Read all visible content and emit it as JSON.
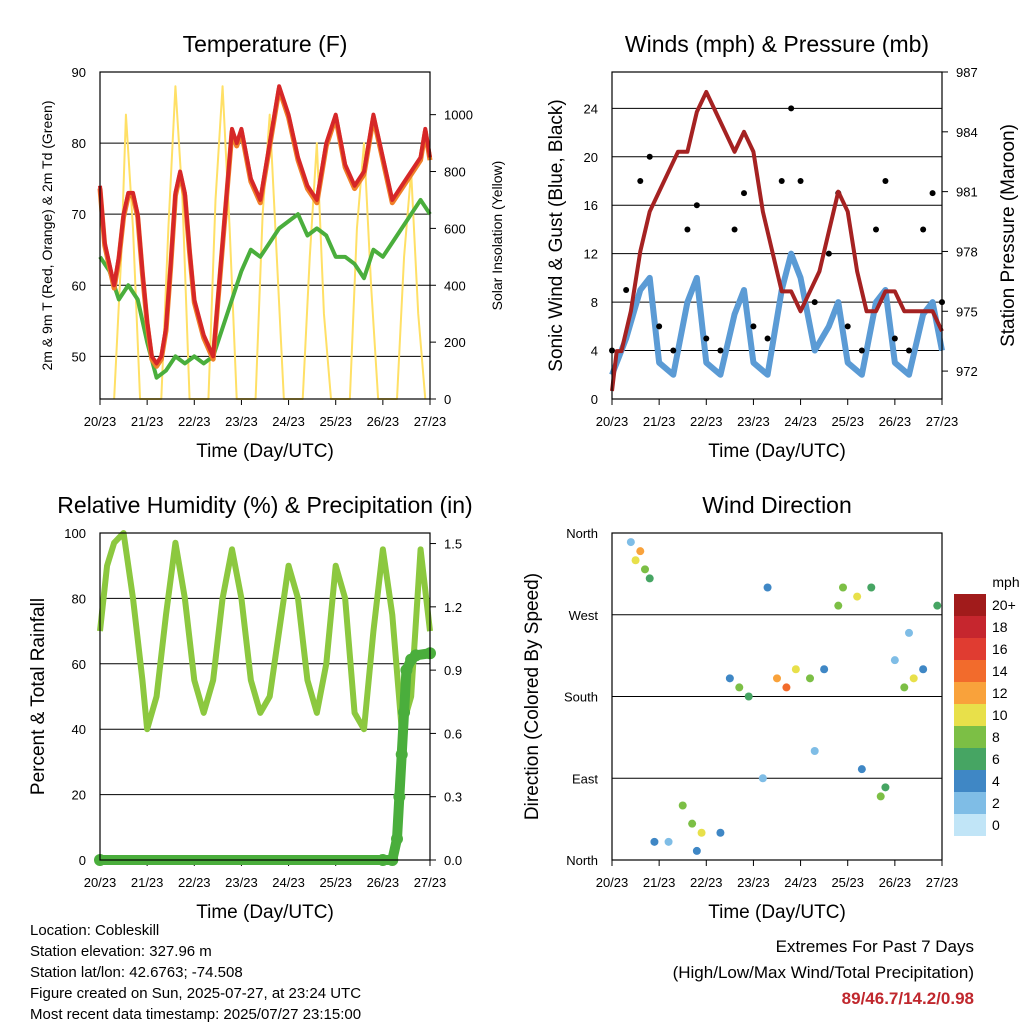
{
  "info": {
    "location": "Location: Cobleskill",
    "elevation": "Station elevation: 327.96 m",
    "latlon": "Station lat/lon: 42.6763; -74.508",
    "created": "Figure created on Sun, 2025-07-27, at 23:24 UTC",
    "recent": "Most recent data timestamp: 2025/07/27 23:15:00"
  },
  "extremes": {
    "title": "Extremes For Past 7 Days",
    "subtitle": "(High/Low/Max Wind/Total Precipitation)",
    "values": "89/46.7/14.2/0.98"
  },
  "colors": {
    "temp2m": "#d62728",
    "temp9m": "#f07f28",
    "dew": "#4aae3c",
    "solar": "#ffe066",
    "wind": "#5b9bd5",
    "gust": "#000000",
    "pressure": "#a52222",
    "rh": "#8cc83f",
    "precip": "#4aae3c"
  },
  "speed_legend": {
    "unit": "mph",
    "labels": [
      "20+",
      "18",
      "16",
      "14",
      "12",
      "10",
      "8",
      "6",
      "4",
      "2",
      "0"
    ],
    "colors": [
      "#a11b1b",
      "#c6262e",
      "#e03c31",
      "#f26b2c",
      "#f9a23b",
      "#e8e04a",
      "#7cbf45",
      "#46a563",
      "#3f87c5",
      "#7fbde6",
      "#c1e5f7"
    ]
  },
  "chart_data": [
    {
      "type": "line",
      "title": "Temperature (F)",
      "xlabel": "Time (Day/UTC)",
      "ylabel": "2m & 9m T (Red, Orange) & 2m Td (Green)",
      "y2label": "Solar Insolation (Yellow)",
      "xticks": [
        "20/23",
        "21/23",
        "22/23",
        "23/23",
        "24/23",
        "25/23",
        "26/23",
        "27/23"
      ],
      "xlim": [
        0,
        7
      ],
      "ylim": [
        44,
        90
      ],
      "yticks": [
        50,
        60,
        70,
        80,
        90
      ],
      "y2lim": [
        0,
        1150
      ],
      "y2ticks": [
        0,
        200,
        400,
        600,
        800,
        1000
      ],
      "grid": true,
      "series": [
        {
          "axis": "left",
          "x": [
            0,
            0.1,
            0.2,
            0.3,
            0.4,
            0.5,
            0.6,
            0.7,
            0.8,
            0.9,
            1.0,
            1.1,
            1.2,
            1.3,
            1.4,
            1.5,
            1.6,
            1.7,
            1.8,
            1.9,
            2.0,
            2.2,
            2.4,
            2.6,
            2.8,
            2.9,
            3.0,
            3.2,
            3.4,
            3.6,
            3.8,
            4.0,
            4.2,
            4.4,
            4.6,
            4.8,
            5.0,
            5.2,
            5.4,
            5.6,
            5.8,
            6.0,
            6.2,
            6.4,
            6.6,
            6.8,
            6.9,
            7.0
          ],
          "y": [
            74,
            66,
            63,
            60,
            64,
            70,
            73,
            73,
            70,
            62,
            55,
            50,
            49,
            50,
            54,
            63,
            73,
            76,
            73,
            65,
            58,
            53,
            50,
            66,
            82,
            80,
            82,
            75,
            72,
            80,
            88,
            84,
            78,
            74,
            72,
            80,
            84,
            77,
            74,
            76,
            84,
            78,
            72,
            74,
            76,
            78,
            82,
            78
          ]
        },
        {
          "axis": "left",
          "x": [
            0,
            0.2,
            0.4,
            0.6,
            0.8,
            1.0,
            1.2,
            1.4,
            1.6,
            1.8,
            2.0,
            2.2,
            2.4,
            2.6,
            2.8,
            3.0,
            3.2,
            3.4,
            3.6,
            3.8,
            4.0,
            4.2,
            4.4,
            4.6,
            4.8,
            5.0,
            5.2,
            5.4,
            5.6,
            5.8,
            6.0,
            6.2,
            6.4,
            6.6,
            6.8,
            7.0
          ],
          "y": [
            64,
            62,
            58,
            60,
            58,
            52,
            47,
            48,
            50,
            49,
            50,
            49,
            50,
            54,
            58,
            62,
            65,
            64,
            66,
            68,
            69,
            70,
            67,
            68,
            67,
            64,
            64,
            63,
            61,
            65,
            64,
            66,
            68,
            70,
            72,
            70
          ]
        },
        {
          "axis": "right",
          "x": [
            0.3,
            0.45,
            0.55,
            0.7,
            0.85,
            1.3,
            1.45,
            1.6,
            1.75,
            1.9,
            2.3,
            2.45,
            2.6,
            2.75,
            2.9,
            3.3,
            3.45,
            3.6,
            3.75,
            3.9,
            4.3,
            4.45,
            4.6,
            4.75,
            4.9,
            5.3,
            5.45,
            5.6,
            5.75,
            5.9,
            6.3,
            6.45,
            6.6,
            6.75,
            6.9
          ],
          "y": [
            0,
            500,
            1000,
            600,
            0,
            0,
            600,
            1100,
            700,
            0,
            0,
            700,
            1100,
            600,
            0,
            0,
            650,
            1000,
            500,
            0,
            0,
            500,
            900,
            300,
            0,
            0,
            600,
            900,
            400,
            0,
            0,
            500,
            800,
            300,
            0
          ]
        }
      ]
    },
    {
      "type": "scatter",
      "title": "Winds (mph) & Pressure (mb)",
      "xlabel": "Time (Day/UTC)",
      "ylabel": "Sonic Wind & Gust (Blue, Black)",
      "y2label": "Station Pressure (Maroon)",
      "xticks": [
        "20/23",
        "21/23",
        "22/23",
        "23/23",
        "24/23",
        "25/23",
        "26/23",
        "27/23"
      ],
      "xlim": [
        0,
        7
      ],
      "ylim": [
        0,
        27
      ],
      "yticks": [
        0,
        4,
        8,
        12,
        16,
        20,
        24
      ],
      "y2lim": [
        970.6,
        987
      ],
      "y2ticks": [
        972,
        975,
        978,
        981,
        984,
        987
      ],
      "grid": true,
      "series": [
        {
          "axis": "left",
          "x": [
            0,
            0.3,
            0.6,
            0.8,
            1.0,
            1.3,
            1.6,
            1.8,
            2.0,
            2.3,
            2.6,
            2.8,
            3.0,
            3.3,
            3.6,
            3.8,
            4.0,
            4.3,
            4.6,
            4.8,
            5.0,
            5.3,
            5.6,
            5.8,
            6.0,
            6.3,
            6.6,
            6.8,
            7.0
          ],
          "y": [
            2,
            5,
            9,
            10,
            3,
            2,
            8,
            10,
            3,
            2,
            7,
            9,
            3,
            2,
            9,
            12,
            10,
            4,
            6,
            8,
            3,
            2,
            8,
            9,
            3,
            2,
            7,
            8,
            4
          ]
        },
        {
          "axis": "left",
          "x": [
            0,
            0.3,
            0.6,
            0.8,
            1.0,
            1.3,
            1.6,
            1.8,
            2.0,
            2.3,
            2.6,
            2.8,
            3.0,
            3.3,
            3.6,
            3.8,
            4.0,
            4.3,
            4.6,
            4.8,
            5.0,
            5.3,
            5.6,
            5.8,
            6.0,
            6.3,
            6.6,
            6.8,
            7.0
          ],
          "y": [
            4,
            9,
            18,
            20,
            6,
            4,
            14,
            16,
            5,
            4,
            14,
            17,
            6,
            5,
            18,
            24,
            18,
            8,
            12,
            17,
            6,
            4,
            14,
            18,
            5,
            4,
            14,
            17,
            8
          ]
        },
        {
          "axis": "right",
          "x": [
            0,
            0.1,
            0.2,
            0.4,
            0.6,
            0.8,
            1.0,
            1.2,
            1.4,
            1.6,
            1.8,
            2.0,
            2.2,
            2.4,
            2.6,
            2.8,
            3.0,
            3.2,
            3.4,
            3.6,
            3.8,
            4.0,
            4.2,
            4.4,
            4.6,
            4.8,
            5.0,
            5.2,
            5.4,
            5.6,
            5.8,
            6.0,
            6.2,
            6.4,
            6.6,
            6.8,
            7.0
          ],
          "y": [
            971,
            973,
            973,
            975,
            978,
            980,
            981,
            982,
            983,
            983,
            985,
            986,
            985,
            984,
            983,
            984,
            983,
            980,
            978,
            976,
            976,
            975,
            976,
            977,
            979,
            981,
            980,
            977,
            975,
            975,
            976,
            976,
            975,
            975,
            975,
            975,
            974
          ]
        }
      ]
    },
    {
      "type": "line",
      "title": "Relative Humidity (%) & Precipitation (in)",
      "xlabel": "Time (Day/UTC)",
      "ylabel": "Percent & Total Rainfall",
      "xticks": [
        "20/23",
        "21/23",
        "22/23",
        "23/23",
        "24/23",
        "25/23",
        "26/23",
        "27/23"
      ],
      "xlim": [
        0,
        7
      ],
      "ylim": [
        0,
        100
      ],
      "yticks": [
        0,
        20,
        40,
        60,
        80,
        100
      ],
      "y2lim": [
        0,
        1.55
      ],
      "y2ticks": [
        "0.0",
        "0.3",
        "0.6",
        "0.9",
        "1.2",
        "1.5"
      ],
      "grid": true,
      "series": [
        {
          "axis": "left",
          "x": [
            0,
            0.15,
            0.3,
            0.5,
            0.7,
            0.9,
            1.0,
            1.2,
            1.4,
            1.6,
            1.8,
            2.0,
            2.2,
            2.4,
            2.6,
            2.8,
            3.0,
            3.2,
            3.4,
            3.6,
            3.8,
            4.0,
            4.2,
            4.4,
            4.6,
            4.8,
            5.0,
            5.2,
            5.4,
            5.6,
            5.8,
            6.0,
            6.2,
            6.4,
            6.6,
            6.8,
            7.0
          ],
          "y": [
            70,
            90,
            97,
            100,
            80,
            55,
            40,
            50,
            75,
            97,
            80,
            55,
            45,
            55,
            80,
            95,
            80,
            55,
            45,
            50,
            70,
            90,
            80,
            55,
            45,
            60,
            90,
            80,
            45,
            40,
            70,
            95,
            75,
            40,
            50,
            95,
            70
          ]
        },
        {
          "axis": "right",
          "x": [
            0,
            6.0,
            6.2,
            6.3,
            6.35,
            6.4,
            6.45,
            6.5,
            6.6,
            6.7,
            7.0
          ],
          "y": [
            0,
            0,
            0,
            0.1,
            0.3,
            0.5,
            0.7,
            0.9,
            0.95,
            0.97,
            0.98
          ]
        }
      ]
    },
    {
      "type": "scatter",
      "title": "Wind Direction",
      "xlabel": "Time (Day/UTC)",
      "ylabel": "Direction (Colored By Speed)",
      "xticks": [
        "20/23",
        "21/23",
        "22/23",
        "23/23",
        "24/23",
        "25/23",
        "26/23",
        "27/23"
      ],
      "xlim": [
        0,
        7
      ],
      "ylim": [
        0,
        360
      ],
      "yticks": [
        "North",
        "East",
        "South",
        "West",
        "North"
      ],
      "grid": true,
      "x": [
        0.5,
        0.6,
        0.7,
        0.8,
        1.5,
        1.7,
        1.9,
        2.5,
        2.7,
        2.9,
        3.3,
        3.5,
        3.7,
        3.9,
        4.2,
        4.5,
        4.8,
        5.2,
        5.5,
        5.7,
        5.8,
        6.2,
        6.4,
        6.6,
        6.9,
        0.4,
        1.2,
        2.3,
        3.2,
        4.3,
        5.3,
        6.3,
        0.9,
        1.8,
        4.9,
        6.0
      ],
      "y": [
        330,
        340,
        320,
        310,
        60,
        40,
        30,
        200,
        190,
        180,
        300,
        200,
        190,
        210,
        200,
        210,
        280,
        290,
        300,
        70,
        80,
        190,
        200,
        210,
        280,
        350,
        20,
        30,
        90,
        120,
        100,
        250,
        20,
        10,
        300,
        220
      ],
      "speed": [
        10,
        12,
        8,
        6,
        8,
        7,
        9,
        4,
        8,
        6,
        3,
        12,
        14,
        10,
        8,
        4,
        8,
        10,
        6,
        8,
        6,
        8,
        10,
        4,
        6,
        2,
        2,
        3,
        2,
        2,
        3,
        2,
        4,
        3,
        8,
        2
      ]
    }
  ]
}
